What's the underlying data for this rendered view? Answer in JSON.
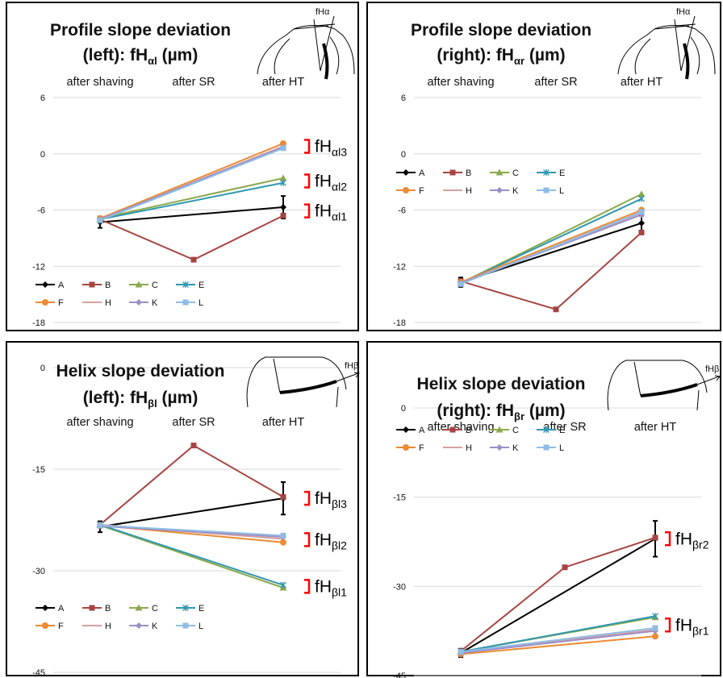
{
  "chart_data": [
    {
      "type": "line",
      "title": "Profile slope deviation",
      "subtitle_main": "(left): fH",
      "subtitle_sub": "αl",
      "subtitle_unit": " (µm)",
      "diagram_label": "fHα",
      "categories": [
        "after shaving",
        "after SR",
        "after HT"
      ],
      "ylim": [
        -18,
        6
      ],
      "yticks": [
        "6",
        "0",
        "-6",
        "-12",
        "-18"
      ],
      "ytick_values": [
        6,
        0,
        -6,
        -12,
        -18
      ],
      "legend": [
        "A",
        "B",
        "C",
        "E",
        "F",
        "H",
        "K",
        "L"
      ],
      "series": [
        {
          "name": "A",
          "values": [
            -7.3,
            null,
            -5.7
          ],
          "error": [
            0.6,
            null,
            1.2
          ]
        },
        {
          "name": "B",
          "values": [
            -7.0,
            -11.3,
            -6.6
          ]
        },
        {
          "name": "C",
          "values": [
            -6.9,
            null,
            -2.6
          ]
        },
        {
          "name": "E",
          "values": [
            -7.0,
            null,
            -3.1
          ]
        },
        {
          "name": "F",
          "values": [
            -6.9,
            null,
            1.1
          ]
        },
        {
          "name": "H",
          "values": [
            -7.0,
            null,
            0.8
          ]
        },
        {
          "name": "K",
          "values": [
            -7.0,
            null,
            0.7
          ]
        },
        {
          "name": "L",
          "values": [
            -7.1,
            null,
            0.6
          ]
        }
      ],
      "annotations": [
        {
          "main": "fH",
          "sub": "αl3",
          "value": 0.8
        },
        {
          "main": "fH",
          "sub": "αl2",
          "value": -2.9
        },
        {
          "main": "fH",
          "sub": "αl1",
          "value": -6.1
        }
      ]
    },
    {
      "type": "line",
      "title": "Profile slope deviation",
      "subtitle_main": "(right): fH",
      "subtitle_sub": "αr",
      "subtitle_unit": " (µm)",
      "diagram_label": "fHα",
      "categories": [
        "after shaving",
        "after SR",
        "after HT"
      ],
      "ylim": [
        -18,
        6
      ],
      "yticks": [
        "6",
        "0",
        "-6",
        "-12",
        "-18"
      ],
      "ytick_values": [
        6,
        0,
        -6,
        -12,
        -18
      ],
      "legend": [
        "A",
        "B",
        "C",
        "E",
        "F",
        "H",
        "K",
        "L"
      ],
      "series": [
        {
          "name": "A",
          "values": [
            -13.7,
            null,
            -7.4
          ],
          "error": [
            0.5,
            null,
            0.8
          ]
        },
        {
          "name": "B",
          "values": [
            -13.6,
            -16.6,
            -8.4
          ]
        },
        {
          "name": "C",
          "values": [
            -13.8,
            null,
            -4.3
          ]
        },
        {
          "name": "E",
          "values": [
            -13.8,
            null,
            -4.8
          ]
        },
        {
          "name": "F",
          "values": [
            -13.7,
            null,
            -6.0
          ]
        },
        {
          "name": "H",
          "values": [
            -13.8,
            null,
            -6.3
          ]
        },
        {
          "name": "K",
          "values": [
            -13.8,
            null,
            -6.5
          ]
        },
        {
          "name": "L",
          "values": [
            -13.9,
            null,
            -6.2
          ]
        }
      ],
      "annotations": []
    },
    {
      "type": "line",
      "title": "Helix slope deviation",
      "subtitle_main": "(left): fH",
      "subtitle_sub": "βl",
      "subtitle_unit": " (µm)",
      "diagram_label": "fHβ",
      "categories": [
        "after shaving",
        "after SR",
        "after HT"
      ],
      "ylim": [
        -45,
        0
      ],
      "yticks": [
        "0",
        "-15",
        "-30",
        "-45"
      ],
      "ytick_values": [
        0,
        -15,
        -30,
        -45
      ],
      "legend": [
        "A",
        "B",
        "C",
        "E",
        "F",
        "H",
        "K",
        "L"
      ],
      "series": [
        {
          "name": "A",
          "values": [
            -23.5,
            null,
            -19.3
          ],
          "error": [
            0.8,
            null,
            2.4
          ]
        },
        {
          "name": "B",
          "values": [
            -23.2,
            -11.5,
            -19.1
          ]
        },
        {
          "name": "C",
          "values": [
            -23.3,
            null,
            -32.5
          ]
        },
        {
          "name": "E",
          "values": [
            -23.2,
            null,
            -32.1
          ]
        },
        {
          "name": "F",
          "values": [
            -23.3,
            null,
            -25.8
          ]
        },
        {
          "name": "H",
          "values": [
            -23.2,
            null,
            -25.3
          ]
        },
        {
          "name": "K",
          "values": [
            -23.4,
            null,
            -25.0
          ]
        },
        {
          "name": "L",
          "values": [
            -23.3,
            null,
            -24.8
          ]
        }
      ],
      "annotations": [
        {
          "main": "fH",
          "sub": "βl3",
          "value": -19.3
        },
        {
          "main": "fH",
          "sub": "βl2",
          "value": -25.4
        },
        {
          "main": "fH",
          "sub": "βl1",
          "value": -32.3
        }
      ]
    },
    {
      "type": "line",
      "title": "Helix slope deviation",
      "subtitle_main": "(right): fH",
      "subtitle_sub": "βr",
      "subtitle_unit": " (µm)",
      "diagram_label": "fHβ",
      "categories": [
        "after shaving",
        "after SR",
        "after HT"
      ],
      "ylim": [
        -45,
        0
      ],
      "yticks": [
        "0",
        "-15",
        "-30",
        "-45"
      ],
      "ytick_values": [
        0,
        -15,
        -30,
        -45
      ],
      "legend": [
        "A",
        "B",
        "C",
        "E",
        "F",
        "H",
        "K",
        "L"
      ],
      "series": [
        {
          "name": "A",
          "values": [
            -41.2,
            null,
            -22.0
          ],
          "error": [
            0.7,
            null,
            3.0
          ]
        },
        {
          "name": "B",
          "values": [
            -40.9,
            -26.8,
            -21.8
          ]
        },
        {
          "name": "C",
          "values": [
            -41.0,
            null,
            -35.2
          ]
        },
        {
          "name": "E",
          "values": [
            -41.0,
            null,
            -35.0
          ]
        },
        {
          "name": "F",
          "values": [
            -41.4,
            null,
            -38.4
          ]
        },
        {
          "name": "H",
          "values": [
            -41.1,
            null,
            -37.3
          ]
        },
        {
          "name": "K",
          "values": [
            -41.2,
            null,
            -37.5
          ]
        },
        {
          "name": "L",
          "values": [
            -41.0,
            null,
            -37.0
          ]
        }
      ],
      "annotations": [
        {
          "main": "fH",
          "sub": "βr2",
          "value": -22.0
        },
        {
          "main": "fH",
          "sub": "βr1",
          "value": -36.5
        }
      ]
    }
  ],
  "series_colors": {
    "A": "#000000",
    "B": "#A64442",
    "C": "#8BA94C",
    "E": "#2F98AE",
    "F": "#EB8B34",
    "H": "#D7A0A0",
    "K": "#9C8EC6",
    "L": "#8FBCE4"
  },
  "series_markers": {
    "A": "diamond",
    "B": "square",
    "C": "triangle",
    "E": "x-star",
    "F": "circle",
    "H": "none",
    "K": "diamond",
    "L": "square"
  },
  "bracket_color": "#FF0000"
}
